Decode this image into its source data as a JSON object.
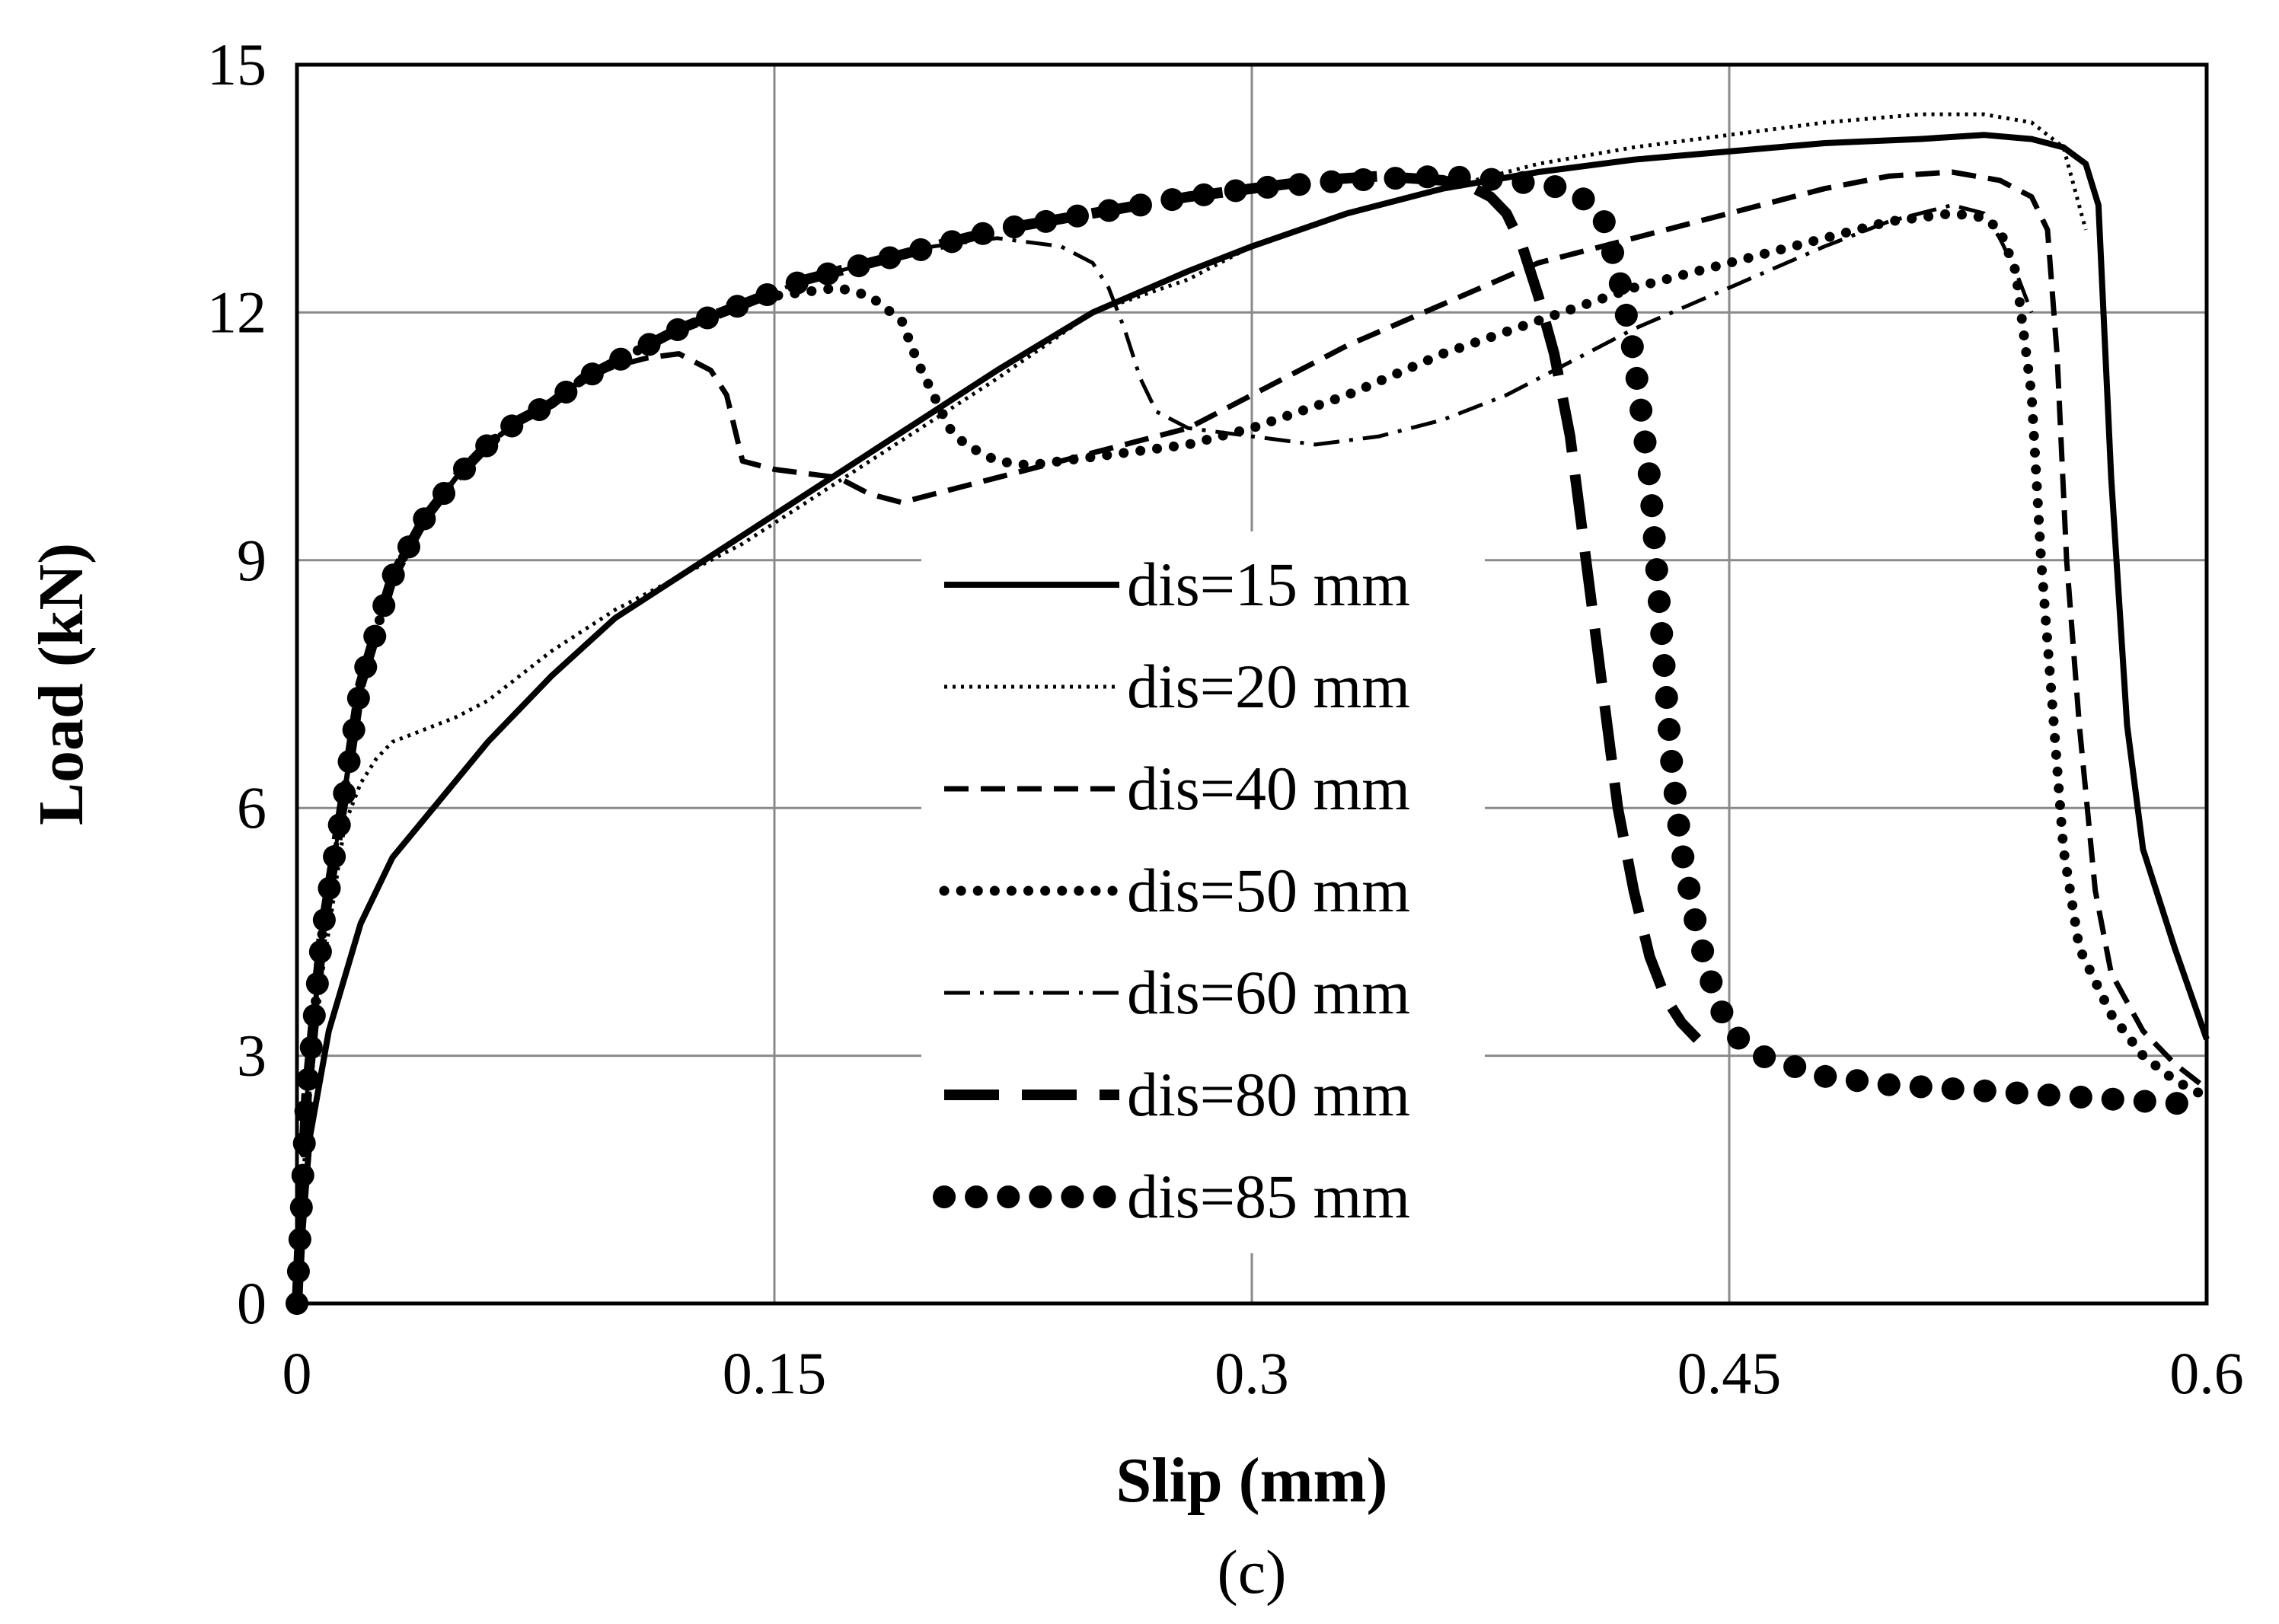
{
  "chart_data": {
    "type": "line",
    "xlabel": "Slip (mm)",
    "ylabel": "Load (kN)",
    "caption": "(c)",
    "xlim": [
      0,
      0.6
    ],
    "ylim": [
      0,
      15
    ],
    "xticks": [
      0,
      0.15,
      0.3,
      0.45,
      0.6
    ],
    "xtick_labels": [
      "0",
      "0.15",
      "0.3",
      "0.45",
      "0.6"
    ],
    "yticks": [
      0,
      3,
      6,
      9,
      12,
      15
    ],
    "ytick_labels": [
      "0",
      "3",
      "6",
      "9",
      "12",
      "15"
    ],
    "grid": true,
    "legend_position": "center",
    "series": [
      {
        "name": "dis=15 mm",
        "style": "solid",
        "x": [
          0,
          0.004,
          0.01,
          0.02,
          0.03,
          0.045,
          0.06,
          0.08,
          0.1,
          0.12,
          0.14,
          0.16,
          0.18,
          0.2,
          0.22,
          0.25,
          0.28,
          0.3,
          0.33,
          0.36,
          0.39,
          0.42,
          0.45,
          0.48,
          0.51,
          0.53,
          0.545,
          0.555,
          0.562,
          0.566,
          0.57,
          0.575,
          0.58,
          0.59,
          0.6
        ],
        "y": [
          0,
          2.0,
          3.3,
          4.6,
          5.4,
          6.1,
          6.8,
          7.6,
          8.3,
          8.8,
          9.3,
          9.8,
          10.3,
          10.8,
          11.3,
          12.0,
          12.5,
          12.8,
          13.2,
          13.5,
          13.7,
          13.85,
          13.95,
          14.05,
          14.1,
          14.15,
          14.1,
          14.0,
          13.8,
          13.3,
          10.0,
          7.0,
          5.5,
          4.3,
          3.2
        ]
      },
      {
        "name": "dis=20 mm",
        "style": "dotted",
        "x": [
          0,
          0.003,
          0.008,
          0.015,
          0.02,
          0.025,
          0.03,
          0.04,
          0.05,
          0.06,
          0.07,
          0.08,
          0.1,
          0.12,
          0.14,
          0.16,
          0.18,
          0.2,
          0.22,
          0.25,
          0.28,
          0.3,
          0.33,
          0.36,
          0.39,
          0.42,
          0.45,
          0.48,
          0.51,
          0.53,
          0.545,
          0.555,
          0.562
        ],
        "y": [
          0,
          2.2,
          4.0,
          5.8,
          6.3,
          6.6,
          6.8,
          6.95,
          7.1,
          7.3,
          7.6,
          7.9,
          8.4,
          8.8,
          9.2,
          9.7,
          10.2,
          10.7,
          11.2,
          12.0,
          12.4,
          12.8,
          13.2,
          13.5,
          13.8,
          14.0,
          14.15,
          14.3,
          14.4,
          14.4,
          14.3,
          14.0,
          13.0
        ]
      },
      {
        "name": "dis=40 mm",
        "style": "dashed",
        "x": [
          0,
          0.003,
          0.008,
          0.015,
          0.02,
          0.03,
          0.04,
          0.05,
          0.06,
          0.07,
          0.08,
          0.09,
          0.1,
          0.11,
          0.12,
          0.13,
          0.135,
          0.14,
          0.15,
          0.16,
          0.17,
          0.18,
          0.19,
          0.2,
          0.22,
          0.25,
          0.28,
          0.3,
          0.33,
          0.36,
          0.39,
          0.42,
          0.45,
          0.48,
          0.5,
          0.52,
          0.535,
          0.545,
          0.55,
          0.553,
          0.556,
          0.56,
          0.565,
          0.57,
          0.58,
          0.59,
          0.6
        ],
        "y": [
          0,
          2.5,
          4.5,
          6.2,
          7.5,
          8.8,
          9.5,
          10.0,
          10.4,
          10.7,
          10.9,
          11.2,
          11.35,
          11.45,
          11.5,
          11.3,
          11.0,
          10.2,
          10.1,
          10.05,
          10.0,
          9.8,
          9.7,
          9.8,
          10.0,
          10.3,
          10.6,
          11.0,
          11.6,
          12.1,
          12.6,
          12.9,
          13.2,
          13.5,
          13.65,
          13.7,
          13.6,
          13.4,
          13.0,
          11.5,
          9.0,
          7.0,
          5.0,
          4.0,
          3.3,
          2.9,
          2.6
        ]
      },
      {
        "name": "dis=50 mm",
        "style": "dotted-round",
        "x": [
          0,
          0.003,
          0.008,
          0.015,
          0.02,
          0.03,
          0.04,
          0.05,
          0.06,
          0.07,
          0.08,
          0.09,
          0.1,
          0.11,
          0.12,
          0.13,
          0.14,
          0.15,
          0.16,
          0.17,
          0.18,
          0.19,
          0.195,
          0.2,
          0.205,
          0.21,
          0.22,
          0.23,
          0.24,
          0.26,
          0.28,
          0.3,
          0.33,
          0.36,
          0.39,
          0.42,
          0.45,
          0.48,
          0.5,
          0.52,
          0.53,
          0.535,
          0.54,
          0.545,
          0.548,
          0.552,
          0.555,
          0.56,
          0.57,
          0.58,
          0.59,
          0.6
        ],
        "y": [
          0,
          2.5,
          4.5,
          6.2,
          7.5,
          8.8,
          9.5,
          10.0,
          10.4,
          10.7,
          10.9,
          11.2,
          11.4,
          11.6,
          11.8,
          11.95,
          12.1,
          12.2,
          12.25,
          12.3,
          12.2,
          11.9,
          11.4,
          11.0,
          10.6,
          10.4,
          10.2,
          10.15,
          10.2,
          10.3,
          10.4,
          10.6,
          11.0,
          11.5,
          11.9,
          12.3,
          12.6,
          12.9,
          13.1,
          13.2,
          13.15,
          13.0,
          12.5,
          11.0,
          9.0,
          7.0,
          5.5,
          4.3,
          3.5,
          3.0,
          2.7,
          2.5
        ]
      },
      {
        "name": "dis=60 mm",
        "style": "dash-dot",
        "x": [
          0,
          0.003,
          0.008,
          0.015,
          0.02,
          0.03,
          0.04,
          0.05,
          0.06,
          0.07,
          0.08,
          0.09,
          0.1,
          0.12,
          0.14,
          0.16,
          0.18,
          0.2,
          0.22,
          0.24,
          0.25,
          0.255,
          0.26,
          0.265,
          0.27,
          0.28,
          0.3,
          0.32,
          0.34,
          0.36,
          0.38,
          0.4,
          0.42,
          0.45,
          0.48,
          0.5,
          0.52,
          0.53,
          0.535,
          0.54,
          0.545
        ],
        "y": [
          0,
          2.5,
          4.5,
          6.2,
          7.5,
          8.8,
          9.5,
          10.0,
          10.4,
          10.7,
          10.9,
          11.2,
          11.4,
          11.8,
          12.1,
          12.4,
          12.6,
          12.8,
          12.9,
          12.8,
          12.6,
          12.3,
          11.8,
          11.2,
          10.8,
          10.6,
          10.5,
          10.4,
          10.5,
          10.7,
          11.0,
          11.4,
          11.8,
          12.3,
          12.8,
          13.1,
          13.3,
          13.2,
          12.9,
          12.5,
          12.0
        ]
      },
      {
        "name": "dis=80 mm",
        "style": "long-dash",
        "x": [
          0,
          0.003,
          0.008,
          0.015,
          0.02,
          0.03,
          0.04,
          0.05,
          0.06,
          0.07,
          0.08,
          0.09,
          0.1,
          0.12,
          0.14,
          0.16,
          0.18,
          0.2,
          0.22,
          0.25,
          0.28,
          0.3,
          0.32,
          0.34,
          0.36,
          0.37,
          0.375,
          0.38,
          0.385,
          0.39,
          0.395,
          0.4,
          0.405,
          0.41,
          0.415,
          0.42,
          0.425,
          0.43,
          0.435,
          0.44
        ],
        "y": [
          0,
          2.5,
          4.5,
          6.2,
          7.5,
          8.8,
          9.5,
          10.0,
          10.4,
          10.7,
          10.9,
          11.2,
          11.4,
          11.8,
          12.1,
          12.4,
          12.6,
          12.8,
          13.0,
          13.2,
          13.4,
          13.5,
          13.6,
          13.65,
          13.6,
          13.5,
          13.4,
          13.2,
          12.8,
          12.2,
          11.5,
          10.5,
          9.0,
          7.5,
          6.0,
          5.0,
          4.2,
          3.7,
          3.4,
          3.2
        ]
      },
      {
        "name": "dis=85 mm",
        "style": "large-dots",
        "x": [
          0,
          0.003,
          0.008,
          0.015,
          0.02,
          0.03,
          0.04,
          0.05,
          0.06,
          0.07,
          0.08,
          0.09,
          0.1,
          0.12,
          0.14,
          0.16,
          0.18,
          0.2,
          0.22,
          0.25,
          0.28,
          0.3,
          0.33,
          0.36,
          0.38,
          0.4,
          0.41,
          0.415,
          0.42,
          0.425,
          0.428,
          0.43,
          0.432,
          0.435,
          0.44,
          0.445,
          0.45,
          0.46,
          0.48,
          0.5,
          0.52,
          0.54,
          0.56,
          0.58,
          0.6
        ],
        "y": [
          0,
          2.5,
          4.5,
          6.2,
          7.5,
          8.8,
          9.5,
          10.0,
          10.4,
          10.7,
          10.9,
          11.2,
          11.4,
          11.8,
          12.1,
          12.4,
          12.6,
          12.8,
          13.0,
          13.2,
          13.4,
          13.5,
          13.6,
          13.65,
          13.6,
          13.5,
          13.2,
          12.5,
          11.5,
          10.0,
          8.5,
          7.5,
          6.5,
          5.5,
          4.5,
          3.8,
          3.3,
          3.0,
          2.75,
          2.65,
          2.6,
          2.55,
          2.5,
          2.45,
          2.4
        ]
      }
    ]
  }
}
